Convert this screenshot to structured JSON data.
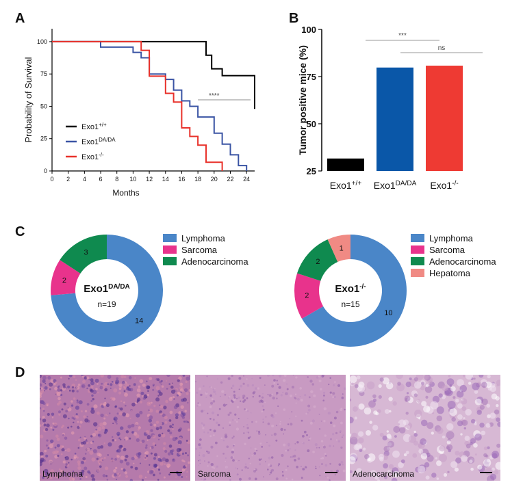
{
  "panels": {
    "A": "A",
    "B": "B",
    "C": "C",
    "D": "D"
  },
  "chart_data": [
    {
      "type": "line",
      "panel": "A",
      "ylabel": "Probability of Survival",
      "xlabel": "Months",
      "xlim": [
        0,
        25
      ],
      "ylim": [
        0,
        110
      ],
      "xticks": [
        "0",
        "2",
        "4",
        "6",
        "8",
        "10",
        "12",
        "14",
        "16",
        "18",
        "20",
        "22",
        "24"
      ],
      "yticks": [
        "0",
        "25",
        "50",
        "75",
        "100"
      ],
      "legend_position": "bottom-left",
      "significance": "****",
      "series": [
        {
          "name_base": "Exo1",
          "name_sup": "+/+",
          "color": "#000000",
          "steps": [
            [
              0,
              100
            ],
            [
              19,
              100
            ],
            [
              19,
              89.5
            ],
            [
              19.7,
              89.5
            ],
            [
              19.7,
              79
            ],
            [
              21,
              79
            ],
            [
              21,
              73.7
            ],
            [
              23,
              73.7
            ],
            [
              23,
              73.7
            ],
            [
              25,
              73.7
            ],
            [
              25,
              48
            ]
          ]
        },
        {
          "name_base": "Exo1",
          "name_sup": "DA/DA",
          "color": "#3a54a4",
          "steps": [
            [
              0,
              100
            ],
            [
              6,
              100
            ],
            [
              6,
              95.8
            ],
            [
              10,
              95.8
            ],
            [
              10,
              91.7
            ],
            [
              11,
              91.7
            ],
            [
              11,
              87.5
            ],
            [
              12,
              87.5
            ],
            [
              12,
              75
            ],
            [
              14,
              75
            ],
            [
              14,
              70.8
            ],
            [
              15,
              70.8
            ],
            [
              15,
              62.5
            ],
            [
              16,
              62.5
            ],
            [
              16,
              54.2
            ],
            [
              17,
              54.2
            ],
            [
              17,
              50
            ],
            [
              18,
              50
            ],
            [
              18,
              41.7
            ],
            [
              20,
              41.7
            ],
            [
              20,
              29.2
            ],
            [
              21,
              29.2
            ],
            [
              21,
              20.8
            ],
            [
              22,
              20.8
            ],
            [
              22,
              12.5
            ],
            [
              23,
              12.5
            ],
            [
              23,
              4.2
            ],
            [
              24,
              4.2
            ],
            [
              24,
              0
            ]
          ]
        },
        {
          "name_base": "Exo1",
          "name_sup": "-/-",
          "color": "#e8312a",
          "steps": [
            [
              0,
              100
            ],
            [
              11,
              100
            ],
            [
              11,
              93.3
            ],
            [
              12,
              93.3
            ],
            [
              12,
              73.3
            ],
            [
              14,
              73.3
            ],
            [
              14,
              60
            ],
            [
              15,
              60
            ],
            [
              15,
              53.3
            ],
            [
              16,
              53.3
            ],
            [
              16,
              33.3
            ],
            [
              17,
              33.3
            ],
            [
              17,
              26.7
            ],
            [
              18,
              26.7
            ],
            [
              18,
              20
            ],
            [
              19,
              20
            ],
            [
              19,
              6.7
            ],
            [
              21,
              6.7
            ],
            [
              21,
              0
            ]
          ]
        }
      ]
    },
    {
      "type": "bar",
      "panel": "B",
      "ylabel": "Tumor positive mice (%)",
      "ylim": [
        25,
        100
      ],
      "yticks": [
        "25",
        "50",
        "75",
        "100"
      ],
      "categories": [
        {
          "base": "Exo1",
          "sup": "+/+"
        },
        {
          "base": "Exo1",
          "sup": "DA/DA"
        },
        {
          "base": "Exo1",
          "sup": "-/-"
        }
      ],
      "values": [
        31.6,
        79.8,
        80.8
      ],
      "colors": [
        "#000000",
        "#0a57a8",
        "#ee3a33"
      ],
      "significance": [
        {
          "label": "***",
          "from": 0,
          "to": 1
        },
        {
          "label": "ns",
          "from": 1,
          "to": 2
        }
      ]
    },
    {
      "type": "pie",
      "panel": "C-left",
      "center_base": "Exo1",
      "center_sup": "DA/DA",
      "n_label": "n=19",
      "labels": [
        "Lymphoma",
        "Sarcoma",
        "Adenocarcinoma"
      ],
      "values": [
        14,
        2,
        3
      ],
      "value_labels": [
        "14",
        "2",
        "3"
      ],
      "colors": [
        "#4a86c8",
        "#e8338c",
        "#0f8a4f"
      ]
    },
    {
      "type": "pie",
      "panel": "C-right",
      "center_base": "Exo1",
      "center_sup": "-/-",
      "n_label": "n=15",
      "labels": [
        "Lymphoma",
        "Sarcoma",
        "Adenocarcinoma",
        "Hepatoma"
      ],
      "values": [
        10,
        2,
        2,
        1
      ],
      "value_labels": [
        "10",
        "2",
        "2",
        "1"
      ],
      "colors": [
        "#4a86c8",
        "#e8338c",
        "#0f8a4f",
        "#f08a84"
      ]
    }
  ],
  "histology": [
    {
      "caption": "Lymphoma",
      "tone": "lymphoma"
    },
    {
      "caption": "Sarcoma",
      "tone": "sarcoma"
    },
    {
      "caption": "Adenocarcinoma",
      "tone": "adeno"
    }
  ]
}
